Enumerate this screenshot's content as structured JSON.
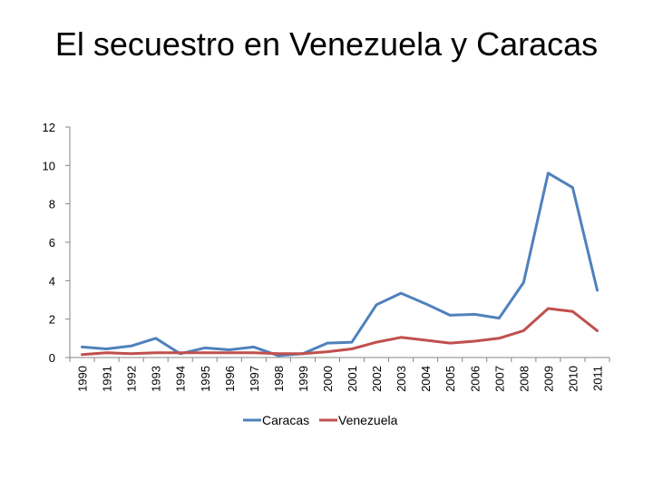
{
  "title": "El secuestro en Venezuela y Caracas",
  "chart_data": {
    "type": "line",
    "title": "El secuestro en Venezuela y Caracas",
    "xlabel": "",
    "ylabel": "",
    "ylim": [
      0,
      12
    ],
    "yticks": [
      0,
      2,
      4,
      6,
      8,
      10,
      12
    ],
    "grid": false,
    "legend_position": "bottom",
    "categories": [
      "1990",
      "1991",
      "1992",
      "1993",
      "1994",
      "1995",
      "1996",
      "1997",
      "1998",
      "1999",
      "2000",
      "2001",
      "2002",
      "2003",
      "2004",
      "2005",
      "2006",
      "2007",
      "2008",
      "2009",
      "2010",
      "2011"
    ],
    "series": [
      {
        "name": "Caracas",
        "color": "#4F81BD",
        "values": [
          0.55,
          0.45,
          0.6,
          1.0,
          0.2,
          0.5,
          0.4,
          0.55,
          0.1,
          0.2,
          0.75,
          0.8,
          2.75,
          3.35,
          2.8,
          2.2,
          2.25,
          2.05,
          3.9,
          9.6,
          8.85,
          3.5
        ]
      },
      {
        "name": "Venezuela",
        "color": "#C0504D",
        "values": [
          0.15,
          0.25,
          0.2,
          0.25,
          0.25,
          0.25,
          0.25,
          0.25,
          0.2,
          0.2,
          0.3,
          0.45,
          0.8,
          1.05,
          0.9,
          0.75,
          0.85,
          1.0,
          1.4,
          2.55,
          2.4,
          1.4
        ]
      }
    ]
  }
}
